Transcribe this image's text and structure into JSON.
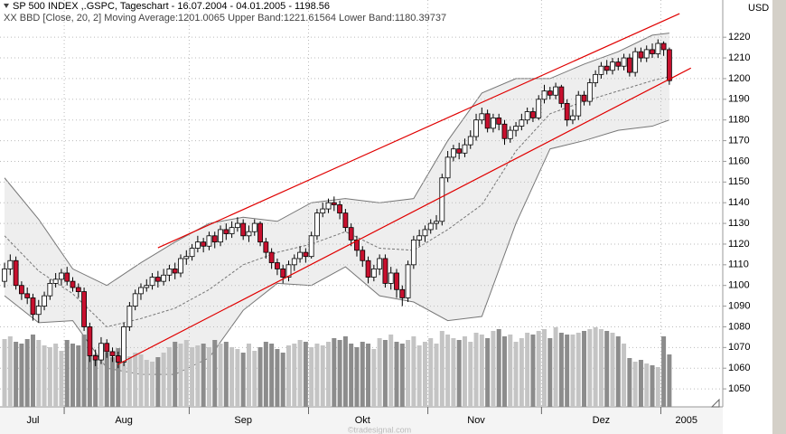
{
  "chart_data": {
    "type": "candlestick",
    "title": "SP 500 INDEX ,.GSPC, Tageschart - 16.07.2004 - 04.01.2005 - 1198.56",
    "subtitle": "XX BBD [Close, 20, 2] Moving Average:1201.0065 Upper Band:1221.61564 Lower Band:1180.39737",
    "currency": "USD",
    "watermark": "©tradesignal.com",
    "open": [
      1102,
      1108,
      1112,
      1100,
      1096,
      1094,
      1086,
      1090,
      1095,
      1101,
      1103,
      1106,
      1102,
      1099,
      1097,
      1080,
      1066,
      1064,
      1072,
      1068,
      1066,
      1063,
      1080,
      1090,
      1096,
      1099,
      1100,
      1104,
      1102,
      1105,
      1108,
      1106,
      1113,
      1114,
      1118,
      1121,
      1119,
      1124,
      1121,
      1127,
      1125,
      1128,
      1130,
      1124,
      1126,
      1130,
      1121,
      1116,
      1111,
      1108,
      1104,
      1110,
      1113,
      1116,
      1114,
      1124,
      1135,
      1137,
      1140,
      1139,
      1135,
      1128,
      1122,
      1117,
      1112,
      1104,
      1108,
      1113,
      1101,
      1106,
      1098,
      1094,
      1110,
      1122,
      1124,
      1127,
      1130,
      1131,
      1152,
      1162,
      1166,
      1164,
      1168,
      1172,
      1180,
      1183,
      1176,
      1181,
      1178,
      1171,
      1175,
      1177,
      1180,
      1184,
      1181,
      1190,
      1194,
      1192,
      1196,
      1188,
      1180,
      1182,
      1192,
      1189,
      1198,
      1202,
      1206,
      1204,
      1208,
      1206,
      1210,
      1203,
      1213,
      1210,
      1214,
      1212,
      1217,
      1214
    ],
    "high": [
      1111,
      1115,
      1114,
      1102,
      1099,
      1096,
      1093,
      1097,
      1103,
      1106,
      1108,
      1109,
      1104,
      1101,
      1099,
      1082,
      1069,
      1075,
      1074,
      1070,
      1068,
      1082,
      1092,
      1098,
      1101,
      1103,
      1106,
      1107,
      1108,
      1110,
      1111,
      1115,
      1117,
      1120,
      1124,
      1123,
      1126,
      1126,
      1129,
      1130,
      1131,
      1133,
      1132,
      1129,
      1132,
      1131,
      1123,
      1118,
      1113,
      1110,
      1112,
      1115,
      1119,
      1118,
      1126,
      1137,
      1140,
      1142,
      1143,
      1141,
      1137,
      1130,
      1124,
      1119,
      1114,
      1110,
      1115,
      1115,
      1109,
      1108,
      1100,
      1112,
      1124,
      1127,
      1129,
      1132,
      1134,
      1154,
      1165,
      1168,
      1169,
      1171,
      1175,
      1183,
      1186,
      1185,
      1183,
      1183,
      1180,
      1177,
      1179,
      1183,
      1186,
      1186,
      1192,
      1197,
      1196,
      1198,
      1197,
      1190,
      1185,
      1194,
      1194,
      1200,
      1204,
      1208,
      1209,
      1210,
      1210,
      1212,
      1212,
      1215,
      1215,
      1216,
      1217,
      1219,
      1218,
      1215
    ],
    "low": [
      1099,
      1105,
      1098,
      1093,
      1091,
      1083,
      1082,
      1088,
      1093,
      1099,
      1100,
      1100,
      1097,
      1094,
      1078,
      1063,
      1061,
      1062,
      1065,
      1063,
      1060,
      1061,
      1078,
      1088,
      1093,
      1097,
      1098,
      1099,
      1100,
      1102,
      1103,
      1104,
      1110,
      1112,
      1116,
      1116,
      1117,
      1118,
      1119,
      1122,
      1123,
      1126,
      1122,
      1121,
      1124,
      1119,
      1113,
      1108,
      1105,
      1101,
      1102,
      1107,
      1111,
      1111,
      1113,
      1122,
      1133,
      1135,
      1136,
      1132,
      1126,
      1119,
      1114,
      1109,
      1101,
      1102,
      1105,
      1099,
      1098,
      1094,
      1090,
      1092,
      1108,
      1119,
      1121,
      1125,
      1127,
      1129,
      1150,
      1160,
      1161,
      1162,
      1166,
      1170,
      1178,
      1174,
      1174,
      1175,
      1168,
      1169,
      1172,
      1175,
      1178,
      1179,
      1180,
      1188,
      1190,
      1190,
      1186,
      1177,
      1178,
      1180,
      1187,
      1187,
      1196,
      1200,
      1202,
      1202,
      1204,
      1204,
      1201,
      1201,
      1208,
      1208,
      1210,
      1210,
      1211,
      1197
    ],
    "close": [
      1108,
      1112,
      1100,
      1096,
      1094,
      1086,
      1090,
      1095,
      1101,
      1103,
      1106,
      1102,
      1099,
      1097,
      1080,
      1066,
      1064,
      1072,
      1068,
      1066,
      1063,
      1080,
      1090,
      1096,
      1099,
      1100,
      1104,
      1102,
      1105,
      1108,
      1106,
      1113,
      1114,
      1118,
      1121,
      1119,
      1124,
      1121,
      1127,
      1125,
      1128,
      1130,
      1124,
      1126,
      1130,
      1121,
      1116,
      1111,
      1108,
      1104,
      1110,
      1113,
      1116,
      1114,
      1124,
      1135,
      1137,
      1140,
      1139,
      1135,
      1128,
      1122,
      1117,
      1112,
      1104,
      1108,
      1113,
      1101,
      1106,
      1098,
      1094,
      1110,
      1122,
      1124,
      1127,
      1130,
      1131,
      1152,
      1162,
      1166,
      1164,
      1168,
      1172,
      1180,
      1183,
      1176,
      1181,
      1178,
      1171,
      1175,
      1177,
      1180,
      1184,
      1181,
      1190,
      1194,
      1192,
      1196,
      1188,
      1180,
      1182,
      1192,
      1189,
      1198,
      1202,
      1206,
      1204,
      1208,
      1206,
      1210,
      1203,
      1213,
      1210,
      1214,
      1212,
      1217,
      1214,
      1199
    ],
    "volume": [
      75,
      78,
      72,
      70,
      75,
      80,
      74,
      68,
      66,
      70,
      62,
      74,
      70,
      68,
      80,
      76,
      58,
      62,
      60,
      55,
      65,
      72,
      56,
      60,
      58,
      52,
      50,
      55,
      60,
      66,
      72,
      70,
      74,
      66,
      68,
      70,
      66,
      74,
      70,
      72,
      66,
      64,
      60,
      70,
      62,
      66,
      72,
      70,
      64,
      60,
      68,
      70,
      74,
      72,
      66,
      70,
      68,
      72,
      76,
      74,
      78,
      70,
      66,
      72,
      70,
      64,
      76,
      74,
      80,
      72,
      70,
      74,
      78,
      68,
      72,
      76,
      70,
      84,
      80,
      76,
      74,
      78,
      72,
      82,
      80,
      76,
      84,
      86,
      78,
      80,
      72,
      76,
      82,
      80,
      84,
      86,
      76,
      88,
      82,
      80,
      80,
      82,
      84,
      86,
      88,
      86,
      84,
      82,
      78,
      70,
      54,
      50,
      52,
      48,
      46,
      44,
      78,
      58
    ],
    "volume_lim": [
      0,
      100
    ],
    "up_color": "#ffffff",
    "down_color": "#c8102e",
    "volume_up_color": "#c4c4c4",
    "volume_down_color": "#8c8c8c",
    "bands": {
      "x": [
        0,
        6,
        12,
        18,
        24,
        30,
        36,
        42,
        48,
        54,
        60,
        66,
        72,
        78,
        84,
        90,
        96,
        102,
        108,
        114,
        117
      ],
      "upper": [
        1152,
        1132,
        1108,
        1100,
        1111,
        1121,
        1130,
        1133,
        1131,
        1140,
        1142,
        1140,
        1142,
        1170,
        1193,
        1200,
        1200,
        1207,
        1213,
        1221,
        1222
      ],
      "middle": [
        1124,
        1107,
        1096,
        1080,
        1084,
        1089,
        1098,
        1110,
        1116,
        1120,
        1126,
        1118,
        1117,
        1127,
        1139,
        1165,
        1183,
        1189,
        1194,
        1199,
        1201
      ],
      "lower": [
        1095,
        1082,
        1083,
        1060,
        1057,
        1057,
        1065,
        1088,
        1101,
        1100,
        1109,
        1095,
        1092,
        1083,
        1085,
        1130,
        1166,
        1170,
        1175,
        1177,
        1180
      ],
      "fill": "#eeeeee",
      "color": "#777777"
    },
    "trendlines": [
      {
        "x": [
          27,
          118.8
        ],
        "values": [
          1118.2,
          1231.4
        ]
      },
      {
        "x": [
          19.9,
          120.8
        ],
        "values": [
          1061.8,
          1205.1
        ]
      }
    ],
    "trend_color": "#e00000",
    "xlim": [
      -0.8,
      126.4
    ],
    "xticks": [
      {
        "value": 5,
        "label": "Jul"
      },
      {
        "value": 21,
        "label": "Aug"
      },
      {
        "value": 42,
        "label": "Sep"
      },
      {
        "value": 63,
        "label": "Okt"
      },
      {
        "value": 83,
        "label": "Nov"
      },
      {
        "value": 105,
        "label": "Dez"
      },
      {
        "value": 120,
        "label": "2005"
      }
    ],
    "xtick_marks": [
      10.5,
      32.5,
      53.5,
      74.5,
      94.5,
      115.5
    ],
    "ylim": [
      1041.3,
      1238
    ],
    "yticks": [
      1050,
      1060,
      1070,
      1080,
      1090,
      1100,
      1110,
      1120,
      1130,
      1140,
      1150,
      1160,
      1170,
      1180,
      1190,
      1200,
      1210,
      1220
    ],
    "grid": true
  }
}
